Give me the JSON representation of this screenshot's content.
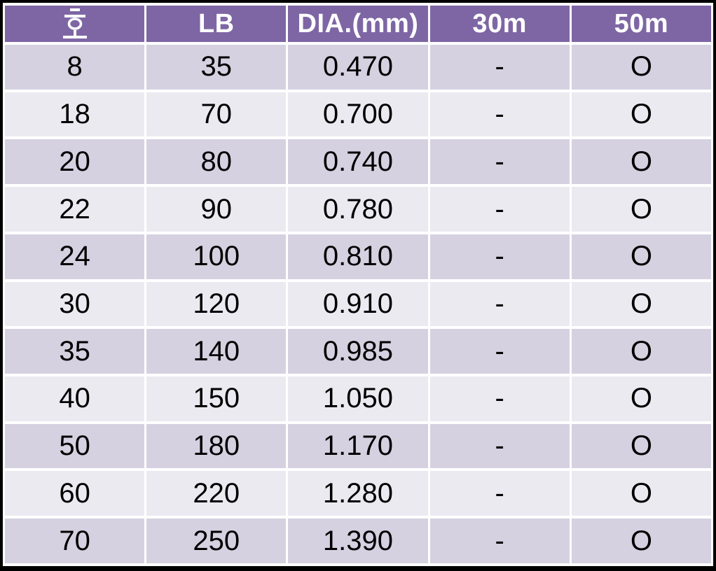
{
  "chart_data": {
    "type": "table",
    "columns": [
      "호",
      "LB",
      "DIA.(mm)",
      "30m",
      "50m"
    ],
    "rows": [
      [
        "8",
        "35",
        "0.470",
        "-",
        "O"
      ],
      [
        "18",
        "70",
        "0.700",
        "-",
        "O"
      ],
      [
        "20",
        "80",
        "0.740",
        "-",
        "O"
      ],
      [
        "22",
        "90",
        "0.780",
        "-",
        "O"
      ],
      [
        "24",
        "100",
        "0.810",
        "-",
        "O"
      ],
      [
        "30",
        "120",
        "0.910",
        "-",
        "O"
      ],
      [
        "35",
        "140",
        "0.985",
        "-",
        "O"
      ],
      [
        "40",
        "150",
        "1.050",
        "-",
        "O"
      ],
      [
        "50",
        "180",
        "1.170",
        "-",
        "O"
      ],
      [
        "60",
        "220",
        "1.280",
        "-",
        "O"
      ],
      [
        "70",
        "250",
        "1.390",
        "-",
        "O"
      ]
    ],
    "banding": "rows alternate dark/light starting dark",
    "legend_position": "none",
    "grid": "white gaps between cells, black outer frame"
  },
  "colors": {
    "header_bg": "#7E66A4",
    "header_text": "#FFFFFF",
    "row_dark": "#D5D1E0",
    "row_light": "#ECEAF1",
    "border": "#000000",
    "gap": "#FFFFFF",
    "cell_text": "#000000"
  }
}
